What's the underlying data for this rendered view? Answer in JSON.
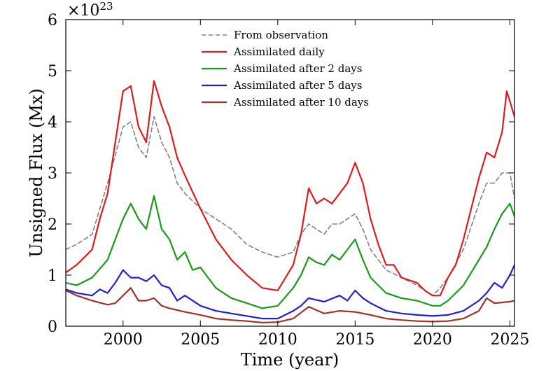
{
  "chart_data": {
    "type": "line",
    "title": "",
    "xlabel": "Time (year)",
    "ylabel": "Unsigned Flux (Mx)",
    "y_multiplier_text": "×10",
    "y_multiplier_exponent": "23",
    "xlim": [
      1996.3,
      2025.3
    ],
    "ylim": [
      0,
      6
    ],
    "x_ticks": [
      2000,
      2005,
      2010,
      2015,
      2020,
      2025
    ],
    "x_tick_labels": [
      "2000",
      "2005",
      "2010",
      "2015",
      "2020",
      "2025"
    ],
    "y_ticks": [
      0,
      1,
      2,
      3,
      4,
      5,
      6
    ],
    "y_tick_labels": [
      "0",
      "1",
      "2",
      "3",
      "4",
      "5",
      "6"
    ],
    "legend_position": "top-center",
    "series": [
      {
        "name": "From observation",
        "color": "#808080",
        "style": "dashed",
        "x": [
          1996.3,
          1997,
          1998,
          1999,
          2000,
          2000.5,
          2001,
          2001.5,
          2002,
          2002.5,
          2003,
          2003.5,
          2004,
          2005,
          2006,
          2007,
          2008,
          2009,
          2010,
          2011,
          2011.5,
          2012,
          2012.5,
          2013,
          2013.5,
          2014,
          2014.5,
          2015,
          2015.5,
          2016,
          2017,
          2018,
          2019,
          2019.5,
          2020,
          2020.5,
          2021,
          2022,
          2023,
          2023.5,
          2024,
          2024.5,
          2025,
          2025.3
        ],
        "values": [
          1.5,
          1.6,
          1.8,
          2.8,
          3.9,
          4.0,
          3.5,
          3.3,
          4.1,
          3.6,
          3.3,
          2.8,
          2.6,
          2.3,
          2.1,
          1.9,
          1.6,
          1.45,
          1.35,
          1.45,
          1.8,
          2.0,
          1.9,
          1.8,
          2.0,
          2.0,
          2.1,
          2.2,
          1.9,
          1.5,
          1.1,
          0.95,
          0.8,
          0.7,
          0.6,
          0.75,
          0.95,
          1.5,
          2.4,
          2.8,
          2.8,
          3.0,
          3.0,
          2.5
        ]
      },
      {
        "name": "Assimilated daily",
        "color": "#e31a1c",
        "style": "solid",
        "x": [
          1996.3,
          1997,
          1998,
          1998.5,
          1999,
          1999.5,
          2000,
          2000.5,
          2001,
          2001.5,
          2002,
          2002.5,
          2003,
          2003.5,
          2004,
          2005,
          2006,
          2007,
          2008,
          2009,
          2010,
          2011,
          2011.5,
          2012,
          2012.5,
          2013,
          2013.5,
          2014,
          2014.5,
          2015,
          2015.5,
          2016,
          2016.5,
          2017,
          2017.5,
          2018,
          2019,
          2019.5,
          2020,
          2020.5,
          2021,
          2021.5,
          2022,
          2022.5,
          2023,
          2023.5,
          2024,
          2024.5,
          2024.8,
          2025,
          2025.3
        ],
        "values": [
          1.05,
          1.2,
          1.5,
          2.1,
          2.6,
          3.6,
          4.6,
          4.7,
          3.9,
          3.6,
          4.8,
          4.3,
          3.9,
          3.3,
          2.95,
          2.3,
          1.7,
          1.3,
          1.0,
          0.75,
          0.7,
          1.2,
          1.8,
          2.7,
          2.4,
          2.5,
          2.4,
          2.6,
          2.8,
          3.2,
          2.8,
          2.1,
          1.6,
          1.2,
          1.2,
          0.95,
          0.85,
          0.7,
          0.6,
          0.6,
          0.95,
          1.2,
          1.7,
          2.3,
          2.9,
          3.4,
          3.3,
          3.8,
          4.6,
          4.4,
          4.1
        ]
      },
      {
        "name": "Assimilated after 2 days",
        "color": "#1a9a1a",
        "style": "solid",
        "x": [
          1996.3,
          1997,
          1998,
          1999,
          1999.5,
          2000,
          2000.5,
          2001,
          2001.5,
          2002,
          2002.5,
          2003,
          2003.5,
          2004,
          2004.5,
          2005,
          2006,
          2007,
          2008,
          2009,
          2010,
          2011,
          2011.5,
          2012,
          2012.5,
          2013,
          2013.5,
          2014,
          2014.5,
          2015,
          2015.5,
          2016,
          2017,
          2018,
          2019,
          2020,
          2020.5,
          2021,
          2022,
          2023,
          2023.5,
          2024,
          2024.5,
          2025,
          2025.3
        ],
        "values": [
          0.85,
          0.8,
          0.95,
          1.3,
          1.7,
          2.1,
          2.4,
          2.1,
          1.9,
          2.55,
          1.9,
          1.7,
          1.3,
          1.45,
          1.1,
          1.15,
          0.75,
          0.55,
          0.45,
          0.35,
          0.4,
          0.75,
          1.0,
          1.35,
          1.25,
          1.2,
          1.4,
          1.3,
          1.5,
          1.7,
          1.3,
          0.95,
          0.65,
          0.55,
          0.5,
          0.4,
          0.4,
          0.5,
          0.8,
          1.3,
          1.55,
          1.9,
          2.2,
          2.4,
          2.15
        ]
      },
      {
        "name": "Assimilated after 5 days",
        "color": "#1f1fd6",
        "style": "solid",
        "x": [
          1996.3,
          1997,
          1998,
          1998.5,
          1999,
          1999.5,
          2000,
          2000.5,
          2001,
          2001.5,
          2002,
          2002.5,
          2003,
          2003.5,
          2004,
          2005,
          2006,
          2007,
          2008,
          2009,
          2010,
          2011,
          2011.5,
          2012,
          2013,
          2014,
          2014.5,
          2015,
          2015.5,
          2016,
          2017,
          2018,
          2019,
          2020,
          2021,
          2022,
          2023,
          2023.5,
          2024,
          2024.5,
          2025,
          2025.3
        ],
        "values": [
          0.72,
          0.65,
          0.6,
          0.72,
          0.65,
          0.85,
          1.1,
          0.95,
          0.95,
          0.88,
          1.0,
          0.8,
          0.75,
          0.5,
          0.6,
          0.4,
          0.3,
          0.25,
          0.2,
          0.15,
          0.15,
          0.3,
          0.4,
          0.55,
          0.48,
          0.6,
          0.5,
          0.7,
          0.55,
          0.45,
          0.3,
          0.25,
          0.22,
          0.2,
          0.22,
          0.3,
          0.5,
          0.65,
          0.85,
          0.75,
          1.0,
          1.2
        ]
      },
      {
        "name": "Assimilated after 10 days",
        "color": "#a0322a",
        "style": "solid",
        "x": [
          1996.3,
          1997,
          1998,
          1999,
          1999.5,
          2000,
          2000.5,
          2001,
          2001.5,
          2002,
          2002.5,
          2003,
          2004,
          2005,
          2006,
          2007,
          2008,
          2009,
          2010,
          2011,
          2012,
          2013,
          2014,
          2015,
          2016,
          2017,
          2018,
          2019,
          2020,
          2021,
          2022,
          2023,
          2023.5,
          2024,
          2025,
          2025.3
        ],
        "values": [
          0.7,
          0.6,
          0.5,
          0.42,
          0.45,
          0.6,
          0.75,
          0.5,
          0.5,
          0.55,
          0.4,
          0.35,
          0.28,
          0.22,
          0.15,
          0.12,
          0.1,
          0.07,
          0.08,
          0.15,
          0.38,
          0.25,
          0.3,
          0.28,
          0.22,
          0.15,
          0.12,
          0.1,
          0.09,
          0.1,
          0.15,
          0.3,
          0.55,
          0.45,
          0.48,
          0.5
        ]
      }
    ]
  }
}
